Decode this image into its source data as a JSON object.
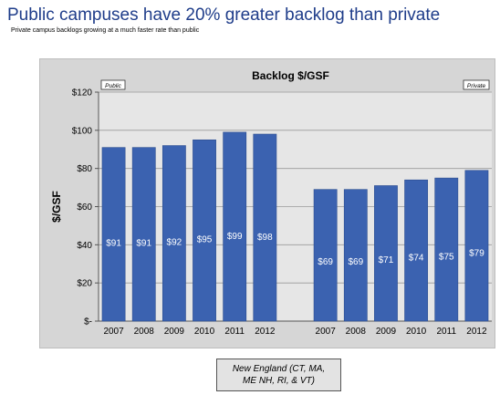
{
  "slide": {
    "title": "Public campuses have 20% greater backlog than private",
    "subtitle": "Private campus backlogs growing at a much faster rate than public"
  },
  "caption": {
    "line1": "New England  (CT, MA,",
    "line2": "ME NH, RI, & VT)"
  },
  "chart_data": {
    "type": "bar",
    "title": "Backlog $/GSF",
    "ylabel": "$/GSF",
    "xlabel": "",
    "ylim": [
      0,
      120
    ],
    "yticks": [
      0,
      20,
      40,
      60,
      80,
      100,
      120
    ],
    "ytick_labels": [
      "$-",
      "$20",
      "$40",
      "$60",
      "$80",
      "$100",
      "$120"
    ],
    "grid": true,
    "bar_color": "#3b62b0",
    "groups": [
      {
        "label": "Public",
        "categories": [
          "2007",
          "2008",
          "2009",
          "2010",
          "2011",
          "2012"
        ],
        "values": [
          91,
          91,
          92,
          95,
          99,
          98
        ],
        "data_labels": [
          "$91",
          "$91",
          "$92",
          "$95",
          "$99",
          "$98"
        ]
      },
      {
        "label": "Private",
        "categories": [
          "2007",
          "2008",
          "2009",
          "2010",
          "2011",
          "2012"
        ],
        "values": [
          69,
          69,
          71,
          74,
          75,
          79
        ],
        "data_labels": [
          "$69",
          "$69",
          "$71",
          "$74",
          "$75",
          "$79"
        ]
      }
    ]
  }
}
